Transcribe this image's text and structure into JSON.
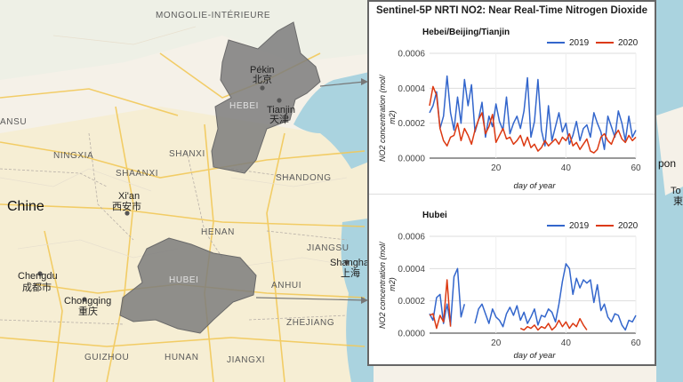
{
  "map": {
    "labels": {
      "mongolia": "MONGOLIE-INTÉRIEURE",
      "hebei_prov": "HEBEI",
      "pekin": "Pékin",
      "pekin_cn": "北京",
      "tianjin": "Tianjin",
      "tianjin_cn": "天津",
      "ansu": "ANSU",
      "ningxia": "NINGXIA",
      "shanxi": "SHANXI",
      "shaanxi": "SHAANXI",
      "shandong": "SHANDONG",
      "xian": "Xi'an",
      "xian_cn": "西安市",
      "china": "Chine",
      "henan": "HENAN",
      "jiangsu": "JIANGSU",
      "shanghai": "Shanghai",
      "shanghai_cn": "上海",
      "chengdu": "Chengdu",
      "chengdu_cn": "成都市",
      "chongqing": "Chongqing",
      "chongqing_cn": "重庆",
      "hubei_prov": "HUBEI",
      "anhui": "ANHUI",
      "zhejiang": "ZHEJIANG",
      "guizhou": "GUIZHOU",
      "hunan": "HUNAN",
      "jiangxi": "JIANGXI",
      "pon": "pon",
      "to": "To",
      "to_cn": "東"
    }
  },
  "panel": {
    "title": "Sentinel-5P NRTI NO2: Near Real-Time Nitrogen Dioxide"
  },
  "colors": {
    "series_2019": "#3366cc",
    "series_2020": "#dc3912",
    "region_fill": "#7d7d7d"
  },
  "chart_data": [
    {
      "type": "line",
      "title": "Hebei/Beijing/Tianjin",
      "xlabel": "day of year",
      "ylabel": "NO2 concentration (mol/m2)",
      "ylabel_line1": "NO2 concentration (mol/",
      "ylabel_line2": "m2)",
      "xlim": [
        1,
        60
      ],
      "ylim": [
        0,
        0.0006
      ],
      "xticks": [
        20,
        40,
        60
      ],
      "yticks": [
        "0.0000",
        "0.0002",
        "0.0004",
        "0.0006"
      ],
      "legend_position": "top-right",
      "series": [
        {
          "name": "2019",
          "x": [
            1,
            2,
            3,
            4,
            5,
            6,
            7,
            8,
            9,
            10,
            11,
            12,
            13,
            14,
            15,
            16,
            17,
            18,
            19,
            20,
            21,
            22,
            23,
            24,
            25,
            26,
            27,
            28,
            29,
            30,
            31,
            32,
            33,
            34,
            35,
            36,
            37,
            38,
            39,
            40,
            41,
            42,
            43,
            44,
            45,
            46,
            47,
            48,
            49,
            50,
            51,
            52,
            53,
            54,
            55,
            56,
            57,
            58,
            59,
            60
          ],
          "values": [
            0.00026,
            0.0003,
            0.00038,
            0.00017,
            0.00024,
            0.00047,
            0.00026,
            0.00016,
            0.00035,
            0.0002,
            0.00045,
            0.0003,
            0.00042,
            0.00015,
            0.00022,
            0.00032,
            0.00012,
            0.00024,
            0.00018,
            0.00031,
            0.00021,
            0.00016,
            0.00035,
            0.00014,
            0.0002,
            0.00024,
            0.00017,
            0.00027,
            0.00046,
            0.00012,
            0.00021,
            0.00045,
            0.00016,
            7e-05,
            0.0003,
            0.0001,
            0.00018,
            0.00026,
            0.00015,
            0.0002,
            8e-05,
            0.00013,
            0.00021,
            0.0001,
            0.00017,
            0.00019,
            0.00012,
            0.00026,
            0.0002,
            0.00015,
            5e-05,
            0.00024,
            0.00018,
            0.00012,
            0.00027,
            0.0002,
            0.0001,
            0.00024,
            0.00012,
            0.00016
          ]
        },
        {
          "name": "2020",
          "x": [
            1,
            2,
            3,
            4,
            5,
            6,
            7,
            8,
            9,
            10,
            11,
            12,
            13,
            14,
            15,
            16,
            17,
            18,
            19,
            20,
            21,
            22,
            23,
            24,
            25,
            26,
            27,
            28,
            29,
            30,
            31,
            32,
            33,
            34,
            35,
            36,
            37,
            38,
            39,
            40,
            41,
            42,
            43,
            44,
            45,
            46,
            47,
            48,
            49,
            50,
            51,
            52,
            53,
            54,
            55,
            56,
            57,
            58,
            59,
            60
          ],
          "values": [
            0.0003,
            0.00041,
            0.00036,
            0.00017,
            0.0001,
            7e-05,
            0.00012,
            0.00013,
            0.0002,
            0.0001,
            0.00017,
            0.00013,
            8e-05,
            0.00016,
            0.00022,
            0.00026,
            0.00014,
            0.00018,
            0.00025,
            9e-05,
            0.00013,
            0.00017,
            0.00011,
            0.00012,
            8e-05,
            0.0001,
            0.00013,
            7e-05,
            0.00012,
            6e-05,
            8e-05,
            4e-05,
            6e-05,
            0.0001,
            7e-05,
            9e-05,
            0.00011,
            8e-05,
            0.00012,
            0.0001,
            0.00014,
            7e-05,
            9e-05,
            5e-05,
            8e-05,
            0.00011,
            4e-05,
            3e-05,
            5e-05,
            0.00012,
            0.00014,
            0.0001,
            8e-05,
            0.00013,
            0.00016,
            0.00011,
            9e-05,
            0.00013,
            0.0001,
            0.00012
          ]
        }
      ]
    },
    {
      "type": "line",
      "title": "Hubei",
      "xlabel": "day of year",
      "ylabel": "NO2 concentration (mol/m2)",
      "ylabel_line1": "NO2 concentration (mol/",
      "ylabel_line2": "m2)",
      "xlim": [
        1,
        60
      ],
      "ylim": [
        0,
        0.0006
      ],
      "xticks": [
        20,
        40,
        60
      ],
      "yticks": [
        "0.0000",
        "0.0002",
        "0.0004",
        "0.0006"
      ],
      "legend_position": "top-right",
      "series": [
        {
          "name": "2019",
          "x": [
            1,
            2,
            3,
            4,
            5,
            6,
            7,
            8,
            9,
            10,
            11,
            12,
            13,
            14,
            15,
            16,
            17,
            18,
            19,
            20,
            21,
            22,
            23,
            24,
            25,
            26,
            27,
            28,
            29,
            30,
            31,
            32,
            33,
            34,
            35,
            36,
            37,
            38,
            39,
            40,
            41,
            42,
            43,
            44,
            45,
            46,
            47,
            48,
            49,
            50,
            51,
            52,
            53,
            54,
            55,
            56,
            57,
            58,
            59,
            60
          ],
          "values": [
            0.00012,
            8e-05,
            0.00022,
            0.00024,
            6e-05,
            0.00018,
            5e-05,
            0.00035,
            0.0004,
            0.0001,
            0.00018,
            null,
            null,
            6e-05,
            0.00015,
            0.00018,
            0.00012,
            6e-05,
            0.00015,
            0.0001,
            8e-05,
            4e-05,
            0.00012,
            0.00016,
            0.00011,
            0.00017,
            8e-05,
            0.00013,
            6e-05,
            0.0001,
            0.00015,
            5e-05,
            0.00011,
            0.0001,
            0.00015,
            0.00013,
            7e-05,
            0.00018,
            0.00032,
            0.00043,
            0.0004,
            0.00024,
            0.00034,
            0.00028,
            0.00033,
            0.00031,
            0.00033,
            0.00019,
            0.0003,
            0.00014,
            0.00018,
            0.0001,
            7e-05,
            0.00012,
            0.00011,
            5e-05,
            2e-05,
            8e-05,
            7e-05,
            0.00011
          ]
        },
        {
          "name": "2020",
          "x": [
            1,
            2,
            3,
            4,
            5,
            6,
            7,
            8,
            9,
            10,
            11,
            12,
            13,
            14,
            15,
            16,
            17,
            18,
            19,
            20,
            21,
            22,
            23,
            24,
            25,
            26,
            27,
            28,
            29,
            30,
            31,
            32,
            33,
            34,
            35,
            36,
            37,
            38,
            39,
            40,
            41,
            42,
            43,
            44,
            45,
            46,
            47,
            48,
            49,
            50,
            51,
            52,
            53,
            54,
            55,
            56,
            57,
            58,
            59,
            60
          ],
          "values": [
            0.00011,
            0.00012,
            3e-05,
            0.00011,
            7e-05,
            0.00033,
            4e-05,
            null,
            null,
            null,
            null,
            null,
            null,
            null,
            null,
            null,
            null,
            null,
            null,
            null,
            null,
            null,
            null,
            null,
            null,
            null,
            3e-05,
            2e-05,
            4e-05,
            3e-05,
            5e-05,
            2e-05,
            4e-05,
            3e-05,
            6e-05,
            2e-05,
            4e-05,
            8e-05,
            4e-05,
            7e-05,
            3e-05,
            6e-05,
            4e-05,
            9e-05,
            5e-05,
            2e-05,
            null,
            null,
            null,
            null,
            null,
            null,
            null,
            null,
            null,
            null,
            null,
            null,
            null,
            null
          ]
        }
      ]
    }
  ]
}
